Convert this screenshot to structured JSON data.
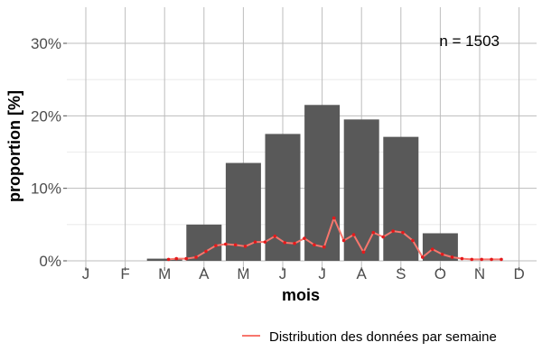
{
  "chart_data": {
    "type": "bar",
    "xlabel": "mois",
    "ylabel": "proportion [%]",
    "annotation": "n = 1503",
    "months": [
      "J",
      "F",
      "M",
      "A",
      "M",
      "J",
      "J",
      "A",
      "S",
      "O",
      "N",
      "D"
    ],
    "ylim": [
      0,
      33
    ],
    "yticks": [
      0,
      10,
      20,
      30
    ],
    "ytick_labels": [
      "0%",
      "10%",
      "20%",
      "30%"
    ],
    "grid": true,
    "bars": {
      "color": "#595959",
      "values": [
        0.0,
        0.0,
        0.3,
        5.0,
        13.5,
        17.5,
        21.5,
        19.5,
        17.1,
        3.8,
        0.0,
        0.0
      ]
    },
    "weekly": {
      "name": "Distribution des données par semaine",
      "color": "#f8766d",
      "point_color": "#e41a1c",
      "x": [
        3.1,
        3.3,
        3.55,
        3.8,
        4.05,
        4.3,
        4.55,
        4.8,
        5.05,
        5.3,
        5.55,
        5.8,
        6.05,
        6.3,
        6.55,
        6.8,
        7.05,
        7.3,
        7.55,
        7.8,
        8.05,
        8.3,
        8.55,
        8.8,
        9.05,
        9.3,
        9.55,
        9.8,
        10.05,
        10.3,
        10.55,
        10.8,
        11.05,
        11.3,
        11.55
      ],
      "y": [
        0.2,
        0.3,
        0.3,
        0.5,
        1.3,
        2.1,
        2.3,
        2.2,
        2.0,
        2.6,
        2.6,
        3.4,
        2.5,
        2.4,
        3.1,
        2.2,
        1.9,
        5.9,
        2.8,
        3.6,
        1.2,
        3.9,
        3.3,
        4.1,
        3.9,
        2.8,
        0.5,
        1.6,
        0.9,
        0.5,
        0.3,
        0.2,
        0.2,
        0.2,
        0.2
      ]
    },
    "legend": {
      "position": "bottom-right",
      "label": "Distribution des données par semaine"
    }
  }
}
